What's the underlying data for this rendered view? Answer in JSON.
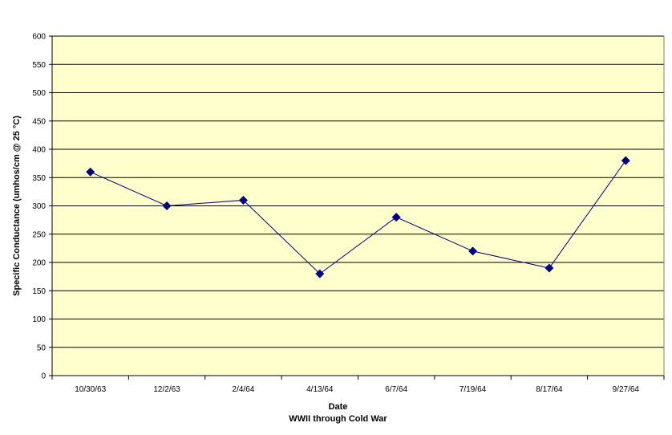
{
  "chart_data": {
    "type": "line",
    "title": "",
    "xlabel": "Date",
    "xlabel2": "WWII through Cold War",
    "ylabel": "Specific Conductance (umhos/cm @ 25 °C)",
    "ylim": [
      0,
      600
    ],
    "ytick_step": 50,
    "yticks": [
      "0",
      "50",
      "100",
      "150",
      "200",
      "250",
      "300",
      "350",
      "400",
      "450",
      "500",
      "550",
      "600"
    ],
    "categories": [
      "10/30/63",
      "12/2/63",
      "2/4/64",
      "4/13/64",
      "6/7/64",
      "7/19/64",
      "8/17/64",
      "9/27/64"
    ],
    "series": [
      {
        "values": [
          360,
          300,
          310,
          180,
          280,
          220,
          190,
          380
        ]
      }
    ],
    "grid": true,
    "legend": "none",
    "colors": {
      "plot_background": "#FFFFCC",
      "line": "#000080",
      "marker": "#000080",
      "gridline": "#000000"
    }
  }
}
